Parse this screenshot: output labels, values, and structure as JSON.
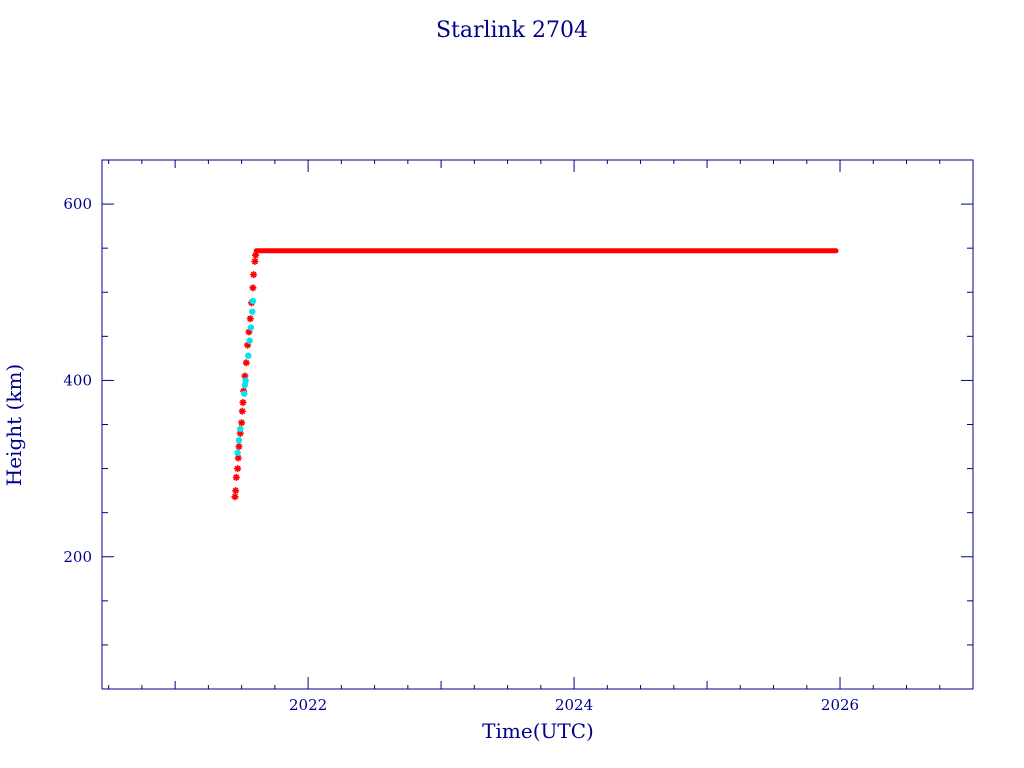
{
  "chart_data": {
    "type": "scatter",
    "title": "Starlink 2704",
    "xlabel": "Time(UTC)",
    "ylabel": "Height (km)",
    "xlim": [
      2020.45,
      2027.0
    ],
    "ylim": [
      50,
      650
    ],
    "x_ticks": [
      2022,
      2024,
      2026
    ],
    "y_ticks": [
      200,
      400,
      600
    ],
    "grid": false,
    "colors": {
      "axis": "#00008b",
      "primary": "#ff0000",
      "secondary": "#00e5ee"
    },
    "series": [
      {
        "color": "#ff0000",
        "marker": "star",
        "points": [
          [
            2021.45,
            268
          ],
          [
            2021.455,
            275
          ],
          [
            2021.46,
            290
          ],
          [
            2021.47,
            300
          ],
          [
            2021.475,
            312
          ],
          [
            2021.48,
            325
          ],
          [
            2021.49,
            340
          ],
          [
            2021.5,
            352
          ],
          [
            2021.505,
            365
          ],
          [
            2021.51,
            375
          ],
          [
            2021.515,
            388
          ],
          [
            2021.525,
            405
          ],
          [
            2021.535,
            420
          ],
          [
            2021.545,
            440
          ],
          [
            2021.555,
            455
          ],
          [
            2021.565,
            470
          ],
          [
            2021.575,
            488
          ],
          [
            2021.585,
            505
          ],
          [
            2021.59,
            520
          ],
          [
            2021.6,
            535
          ],
          [
            2021.605,
            542
          ]
        ],
        "plateau": {
          "x_start": 2021.61,
          "x_end": 2025.97,
          "y": 547
        }
      },
      {
        "color": "#00e5ee",
        "marker": "dot",
        "points": [
          [
            2021.47,
            318
          ],
          [
            2021.48,
            332
          ],
          [
            2021.49,
            345
          ],
          [
            2021.52,
            385
          ],
          [
            2021.525,
            395
          ],
          [
            2021.53,
            400
          ],
          [
            2021.55,
            428
          ],
          [
            2021.56,
            445
          ],
          [
            2021.57,
            460
          ],
          [
            2021.58,
            478
          ],
          [
            2021.585,
            490
          ]
        ]
      }
    ]
  }
}
